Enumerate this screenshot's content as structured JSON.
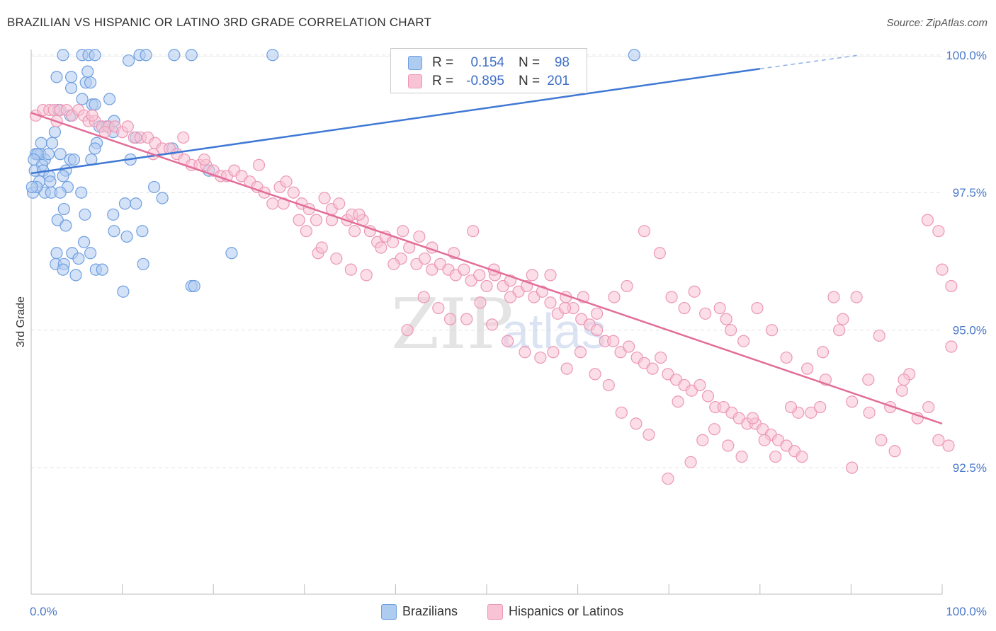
{
  "title": "BRAZILIAN VS HISPANIC OR LATINO 3RD GRADE CORRELATION CHART",
  "source": "Source: ZipAtlas.com",
  "watermark": {
    "zip": "ZIP",
    "atlas": "atlas"
  },
  "stats": [
    {
      "r_label": "R =",
      "r_value": "0.154",
      "n_label": "N =",
      "n_value": "98",
      "color": "#6f9fe0"
    },
    {
      "r_label": "R =",
      "r_value": "-0.895",
      "n_label": "N =",
      "n_value": "201",
      "color": "#f2a3bd"
    }
  ],
  "legend": [
    {
      "label": "Brazilians",
      "color": "#aecbf0",
      "border": "#6f9fe0"
    },
    {
      "label": "Hispanics or Latinos",
      "color": "#f8c3d4",
      "border": "#ec97b5"
    }
  ],
  "chart_data": {
    "type": "scatter",
    "title": "BRAZILIAN VS HISPANIC OR LATINO 3RD GRADE CORRELATION CHART",
    "xlabel": "",
    "ylabel": "3rd Grade",
    "xlim": [
      0,
      100
    ],
    "ylim": [
      90.2,
      100.1
    ],
    "x_ticks": [
      {
        "value": 0,
        "label": "0.0%"
      },
      {
        "value": 100,
        "label": "100.0%"
      }
    ],
    "y_ticks": [
      {
        "value": 100,
        "label": "100.0%"
      },
      {
        "value": 97.5,
        "label": "97.5%"
      },
      {
        "value": 95,
        "label": "95.0%"
      },
      {
        "value": 92.5,
        "label": "92.5%"
      }
    ],
    "grid": true,
    "series": [
      {
        "name": "Brazilians",
        "color": "#6f9fe0",
        "fill": "#aecbf0",
        "trend": {
          "x0": 0,
          "y0": 97.85,
          "x1": 80,
          "y1": 99.75,
          "dash_to_x": 91,
          "dash_to_y": 100.0
        },
        "points": [
          [
            3.5,
            100
          ],
          [
            5.6,
            100
          ],
          [
            6.3,
            100
          ],
          [
            7.0,
            100
          ],
          [
            10.7,
            99.9
          ],
          [
            11.9,
            100
          ],
          [
            12.6,
            100
          ],
          [
            15.7,
            100
          ],
          [
            17.6,
            100
          ],
          [
            26.5,
            100
          ],
          [
            66.2,
            100
          ],
          [
            2.8,
            99.6
          ],
          [
            4.4,
            99.6
          ],
          [
            6.2,
            99.7
          ],
          [
            6.0,
            99.5
          ],
          [
            6.5,
            99.5
          ],
          [
            4.4,
            99.4
          ],
          [
            8.6,
            99.2
          ],
          [
            5.6,
            99.2
          ],
          [
            6.7,
            99.1
          ],
          [
            7.0,
            99.1
          ],
          [
            3.0,
            99.0
          ],
          [
            4.3,
            98.9
          ],
          [
            9.1,
            98.8
          ],
          [
            8.3,
            98.7
          ],
          [
            7.5,
            98.7
          ],
          [
            9.0,
            98.6
          ],
          [
            2.6,
            98.6
          ],
          [
            11.5,
            98.5
          ],
          [
            7.2,
            98.4
          ],
          [
            1.1,
            98.4
          ],
          [
            2.3,
            98.4
          ],
          [
            7.0,
            98.3
          ],
          [
            0.5,
            98.2
          ],
          [
            1.0,
            98.2
          ],
          [
            1.5,
            98.1
          ],
          [
            1.9,
            98.2
          ],
          [
            0.7,
            98.2
          ],
          [
            3.2,
            98.2
          ],
          [
            4.3,
            98.1
          ],
          [
            4.7,
            98.1
          ],
          [
            0.3,
            98.1
          ],
          [
            1.2,
            98.0
          ],
          [
            6.6,
            98.1
          ],
          [
            10.9,
            98.1
          ],
          [
            15.5,
            98.3
          ],
          [
            0.4,
            97.9
          ],
          [
            1.3,
            97.9
          ],
          [
            2.0,
            97.8
          ],
          [
            3.8,
            97.9
          ],
          [
            0.9,
            97.7
          ],
          [
            2.1,
            97.7
          ],
          [
            3.5,
            97.8
          ],
          [
            19.5,
            97.9
          ],
          [
            4.0,
            97.6
          ],
          [
            1.5,
            97.5
          ],
          [
            2.2,
            97.5
          ],
          [
            3.2,
            97.5
          ],
          [
            0.2,
            97.5
          ],
          [
            0.6,
            97.6
          ],
          [
            5.5,
            97.5
          ],
          [
            13.5,
            97.6
          ],
          [
            14.4,
            97.4
          ],
          [
            10.3,
            97.3
          ],
          [
            11.5,
            97.3
          ],
          [
            3.6,
            97.2
          ],
          [
            5.9,
            97.1
          ],
          [
            9.0,
            97.1
          ],
          [
            2.9,
            97.0
          ],
          [
            3.8,
            96.9
          ],
          [
            9.1,
            96.8
          ],
          [
            12.2,
            96.8
          ],
          [
            10.5,
            96.7
          ],
          [
            5.8,
            96.6
          ],
          [
            2.8,
            96.4
          ],
          [
            4.5,
            96.4
          ],
          [
            6.5,
            96.4
          ],
          [
            22.0,
            96.4
          ],
          [
            2.7,
            96.2
          ],
          [
            3.6,
            96.2
          ],
          [
            5.2,
            96.3
          ],
          [
            7.1,
            96.1
          ],
          [
            12.3,
            96.2
          ],
          [
            3.5,
            96.1
          ],
          [
            4.9,
            96.0
          ],
          [
            7.8,
            96.1
          ],
          [
            17.6,
            95.8
          ],
          [
            17.9,
            95.8
          ],
          [
            10.1,
            95.7
          ],
          [
            0.1,
            97.6
          ]
        ]
      },
      {
        "name": "Hispanics or Latinos",
        "color": "#ec97b5",
        "fill": "#f8c3d4",
        "trend": {
          "x0": 0,
          "y0": 98.95,
          "x1": 100,
          "y1": 93.3
        },
        "points": [
          [
            0.5,
            98.9
          ],
          [
            1.3,
            99.0
          ],
          [
            2.0,
            99.0
          ],
          [
            2.5,
            99.0
          ],
          [
            3.2,
            99.0
          ],
          [
            3.9,
            99.0
          ],
          [
            4.5,
            98.9
          ],
          [
            5.2,
            99.0
          ],
          [
            5.8,
            98.9
          ],
          [
            6.3,
            98.8
          ],
          [
            7.0,
            98.8
          ],
          [
            7.8,
            98.7
          ],
          [
            8.5,
            98.7
          ],
          [
            9.2,
            98.7
          ],
          [
            10.0,
            98.6
          ],
          [
            10.6,
            98.7
          ],
          [
            11.3,
            98.5
          ],
          [
            12.0,
            98.5
          ],
          [
            12.8,
            98.5
          ],
          [
            13.6,
            98.4
          ],
          [
            14.4,
            98.3
          ],
          [
            15.2,
            98.3
          ],
          [
            16.0,
            98.2
          ],
          [
            16.8,
            98.1
          ],
          [
            17.6,
            98.0
          ],
          [
            18.5,
            98.0
          ],
          [
            19.2,
            98.0
          ],
          [
            20.0,
            97.9
          ],
          [
            20.8,
            97.8
          ],
          [
            21.5,
            97.8
          ],
          [
            22.3,
            97.9
          ],
          [
            23.1,
            97.8
          ],
          [
            24.0,
            97.7
          ],
          [
            24.8,
            97.6
          ],
          [
            25.6,
            97.5
          ],
          [
            26.5,
            97.3
          ],
          [
            27.3,
            97.6
          ],
          [
            28.0,
            97.7
          ],
          [
            28.8,
            97.5
          ],
          [
            29.7,
            97.3
          ],
          [
            30.5,
            97.2
          ],
          [
            31.3,
            97.0
          ],
          [
            32.2,
            97.4
          ],
          [
            33.0,
            97.2
          ],
          [
            33.8,
            97.3
          ],
          [
            34.7,
            97.0
          ],
          [
            35.5,
            96.8
          ],
          [
            36.4,
            97.0
          ],
          [
            37.2,
            96.8
          ],
          [
            38.0,
            96.6
          ],
          [
            38.9,
            96.7
          ],
          [
            39.7,
            96.6
          ],
          [
            40.6,
            96.3
          ],
          [
            41.5,
            96.5
          ],
          [
            42.3,
            96.2
          ],
          [
            43.2,
            96.3
          ],
          [
            44.0,
            96.1
          ],
          [
            44.9,
            96.2
          ],
          [
            45.8,
            96.1
          ],
          [
            46.6,
            96.0
          ],
          [
            47.5,
            96.1
          ],
          [
            48.3,
            95.9
          ],
          [
            49.2,
            96.0
          ],
          [
            50.0,
            95.8
          ],
          [
            50.9,
            96.0
          ],
          [
            51.8,
            95.8
          ],
          [
            52.6,
            95.9
          ],
          [
            53.5,
            95.7
          ],
          [
            54.4,
            95.8
          ],
          [
            55.2,
            95.6
          ],
          [
            56.1,
            95.7
          ],
          [
            57.0,
            95.5
          ],
          [
            57.8,
            95.3
          ],
          [
            58.7,
            95.6
          ],
          [
            59.5,
            95.4
          ],
          [
            60.4,
            95.2
          ],
          [
            61.3,
            95.1
          ],
          [
            62.1,
            95.0
          ],
          [
            63.0,
            94.8
          ],
          [
            63.9,
            94.8
          ],
          [
            64.7,
            94.6
          ],
          [
            65.6,
            94.7
          ],
          [
            66.5,
            94.5
          ],
          [
            67.3,
            94.4
          ],
          [
            68.2,
            94.3
          ],
          [
            69.1,
            94.5
          ],
          [
            69.9,
            94.2
          ],
          [
            70.8,
            94.1
          ],
          [
            71.7,
            94.0
          ],
          [
            72.5,
            93.9
          ],
          [
            73.4,
            94.0
          ],
          [
            74.3,
            93.8
          ],
          [
            75.1,
            93.6
          ],
          [
            76.0,
            93.6
          ],
          [
            76.9,
            93.5
          ],
          [
            77.7,
            93.4
          ],
          [
            78.6,
            93.3
          ],
          [
            79.5,
            93.3
          ],
          [
            80.3,
            93.2
          ],
          [
            81.2,
            93.1
          ],
          [
            82.0,
            93.0
          ],
          [
            82.9,
            92.9
          ],
          [
            83.8,
            92.8
          ],
          [
            84.6,
            92.7
          ],
          [
            2.8,
            98.8
          ],
          [
            6.7,
            98.9
          ],
          [
            8.1,
            98.6
          ],
          [
            13.4,
            98.2
          ],
          [
            16.7,
            98.5
          ],
          [
            19.0,
            98.1
          ],
          [
            25.0,
            98.0
          ],
          [
            27.7,
            97.3
          ],
          [
            31.5,
            96.4
          ],
          [
            33.0,
            97.0
          ],
          [
            35.2,
            97.1
          ],
          [
            36.0,
            97.1
          ],
          [
            40.8,
            96.8
          ],
          [
            42.6,
            96.7
          ],
          [
            44.0,
            96.5
          ],
          [
            46.4,
            96.4
          ],
          [
            48.5,
            96.8
          ],
          [
            50.8,
            96.1
          ],
          [
            52.6,
            95.6
          ],
          [
            55.0,
            96.0
          ],
          [
            57.0,
            96.0
          ],
          [
            58.6,
            95.4
          ],
          [
            60.6,
            95.6
          ],
          [
            62.1,
            95.3
          ],
          [
            64.0,
            95.6
          ],
          [
            65.4,
            95.8
          ],
          [
            67.3,
            96.8
          ],
          [
            69.0,
            96.4
          ],
          [
            70.3,
            95.6
          ],
          [
            71.7,
            95.4
          ],
          [
            72.8,
            95.7
          ],
          [
            74.0,
            95.3
          ],
          [
            75.6,
            95.4
          ],
          [
            76.3,
            95.2
          ],
          [
            76.8,
            95.0
          ],
          [
            78.2,
            94.8
          ],
          [
            79.7,
            95.4
          ],
          [
            81.3,
            95.0
          ],
          [
            82.9,
            94.5
          ],
          [
            84.2,
            93.5
          ],
          [
            85.6,
            93.5
          ],
          [
            86.9,
            94.6
          ],
          [
            88.1,
            95.6
          ],
          [
            89.1,
            95.2
          ],
          [
            90.6,
            95.6
          ],
          [
            91.9,
            94.1
          ],
          [
            93.1,
            94.9
          ],
          [
            94.3,
            93.6
          ],
          [
            95.6,
            93.9
          ],
          [
            96.4,
            94.2
          ],
          [
            97.3,
            93.4
          ],
          [
            98.5,
            93.6
          ],
          [
            99.6,
            93.0
          ],
          [
            100.0,
            96.1
          ],
          [
            101.0,
            94.7
          ],
          [
            100.7,
            92.9
          ],
          [
            98.4,
            97.0
          ],
          [
            99.6,
            96.8
          ],
          [
            101.0,
            95.8
          ],
          [
            95.8,
            94.1
          ],
          [
            94.8,
            92.8
          ],
          [
            93.3,
            93.0
          ],
          [
            92.0,
            93.5
          ],
          [
            90.1,
            93.7
          ],
          [
            88.7,
            95.0
          ],
          [
            87.2,
            94.1
          ],
          [
            85.2,
            94.3
          ],
          [
            83.4,
            93.6
          ],
          [
            81.7,
            92.7
          ],
          [
            80.5,
            93.0
          ],
          [
            79.2,
            93.4
          ],
          [
            78.0,
            92.7
          ],
          [
            76.5,
            92.9
          ],
          [
            75.0,
            93.2
          ],
          [
            73.7,
            93.0
          ],
          [
            72.4,
            92.6
          ],
          [
            71.0,
            93.7
          ],
          [
            69.9,
            92.3
          ],
          [
            67.8,
            93.1
          ],
          [
            66.4,
            93.3
          ],
          [
            64.8,
            93.5
          ],
          [
            63.4,
            94.0
          ],
          [
            61.9,
            94.2
          ],
          [
            60.3,
            94.6
          ],
          [
            58.8,
            94.3
          ],
          [
            57.3,
            94.6
          ],
          [
            55.9,
            94.5
          ],
          [
            54.2,
            94.6
          ],
          [
            52.3,
            94.8
          ],
          [
            50.6,
            95.1
          ],
          [
            49.3,
            95.5
          ],
          [
            47.8,
            95.2
          ],
          [
            46.0,
            95.2
          ],
          [
            44.7,
            95.4
          ],
          [
            43.1,
            95.6
          ],
          [
            41.3,
            95.0
          ],
          [
            39.8,
            96.2
          ],
          [
            38.4,
            96.5
          ],
          [
            36.8,
            96.0
          ],
          [
            35.1,
            96.1
          ],
          [
            33.5,
            96.3
          ],
          [
            31.9,
            96.5
          ],
          [
            30.2,
            96.8
          ],
          [
            29.4,
            97.0
          ],
          [
            86.6,
            93.6
          ],
          [
            90.1,
            92.5
          ]
        ]
      }
    ]
  }
}
